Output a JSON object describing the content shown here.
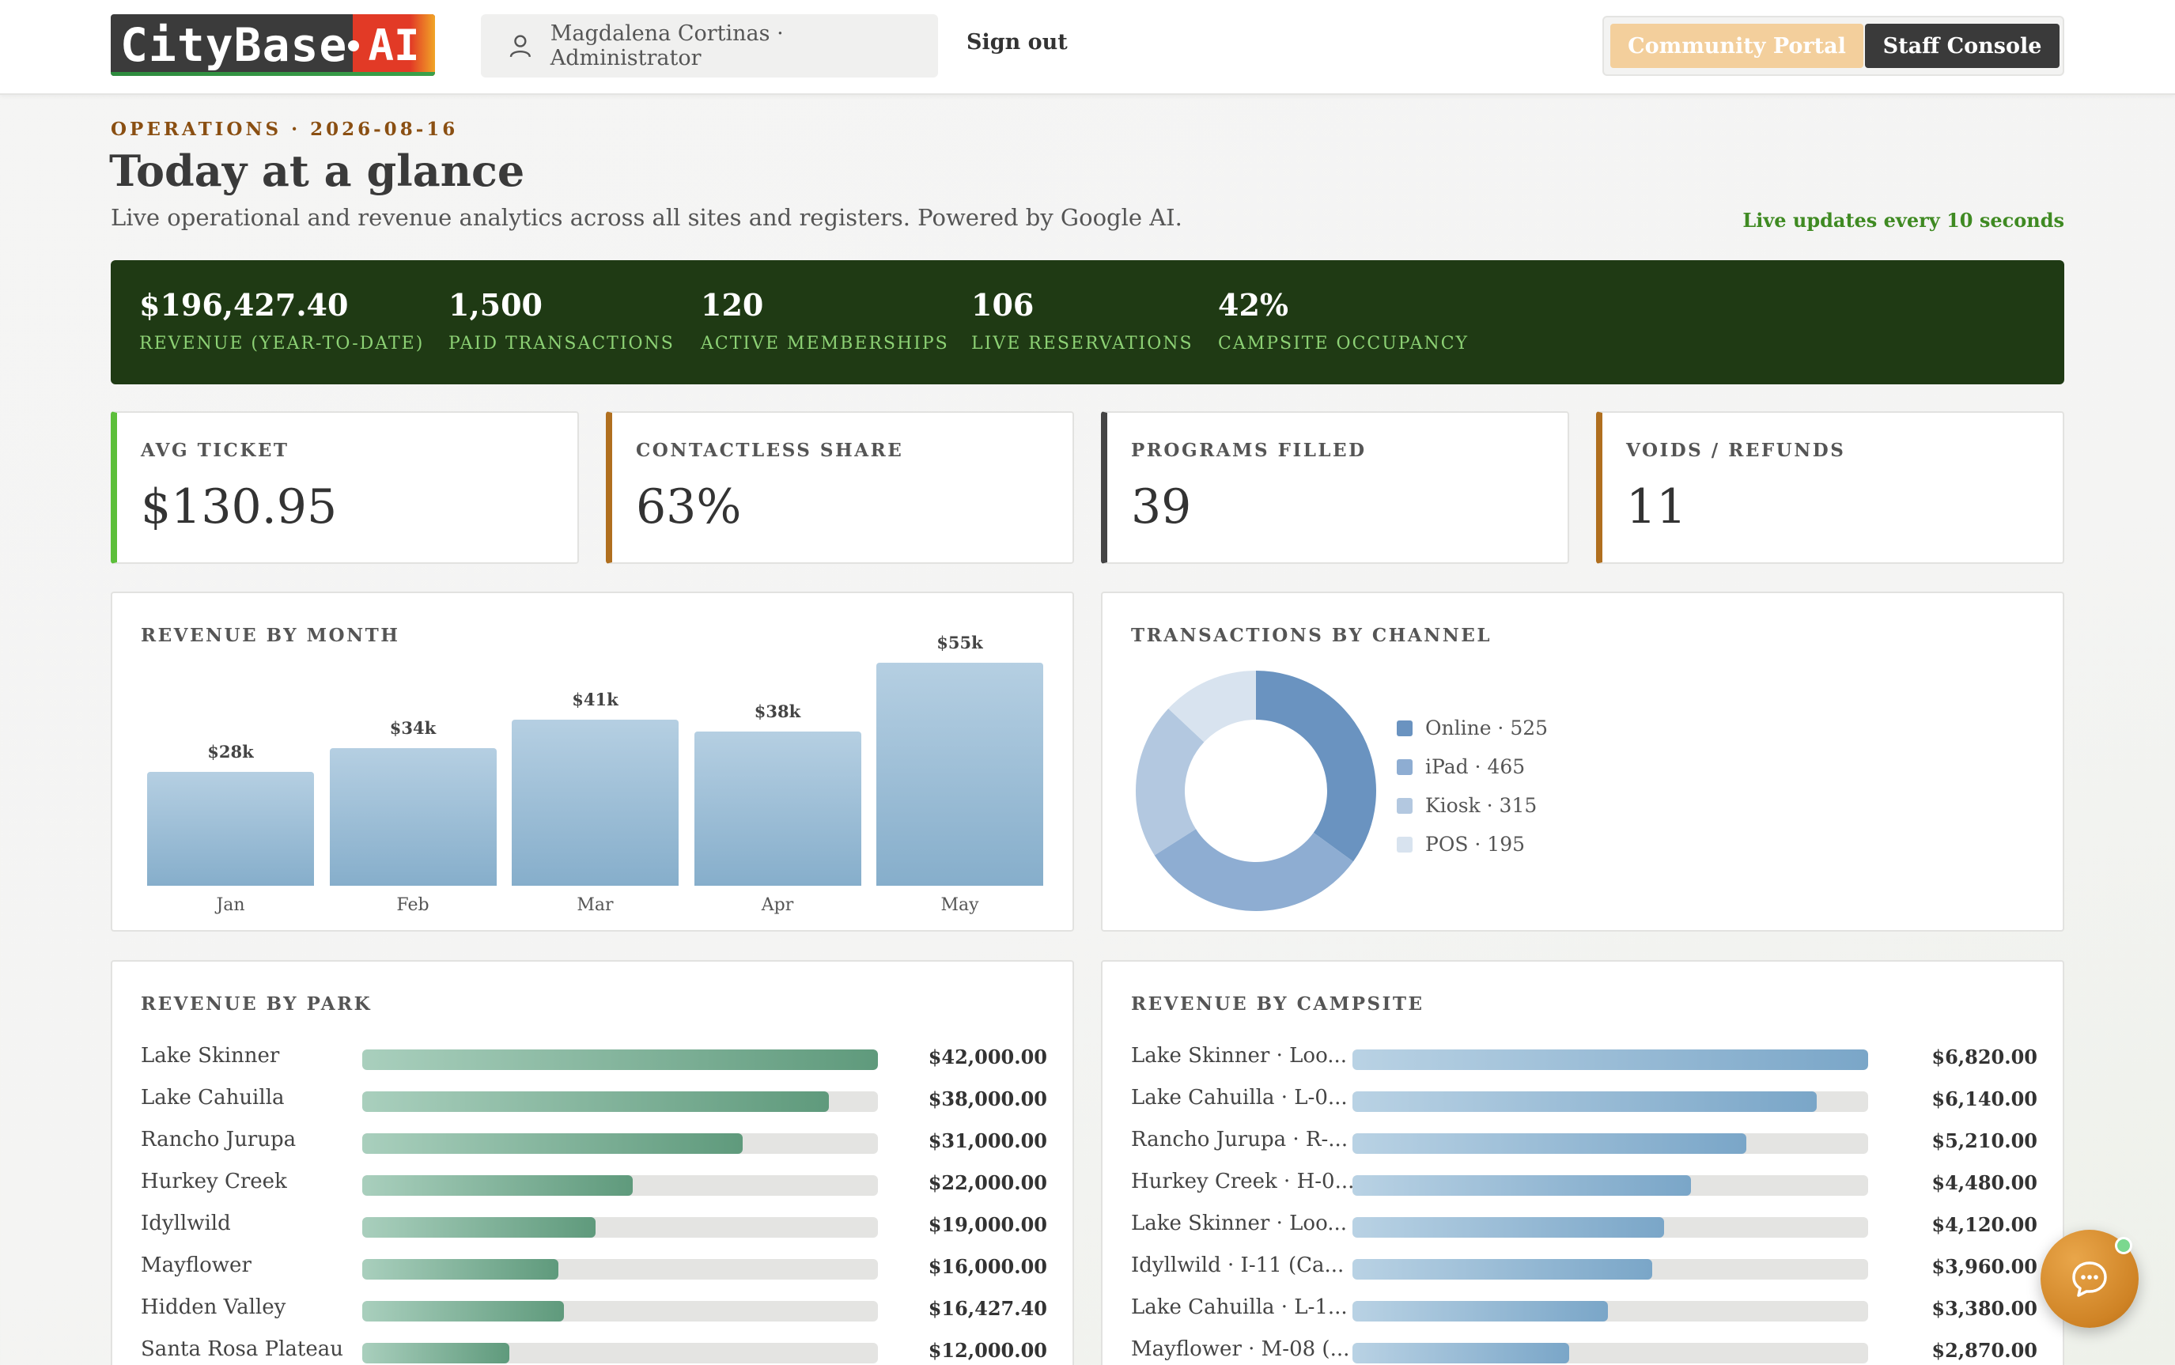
{
  "header": {
    "logo_text": "CityBase",
    "logo_ai": "AI",
    "user": "Magdalena Cortinas · Administrator",
    "sign_out": "Sign out",
    "community_portal": "Community Portal",
    "staff_console": "Staff Console"
  },
  "page": {
    "eyebrow": "OPERATIONS · 2026-08-16",
    "title": "Today at a glance",
    "subtitle": "Live operational and revenue analytics across all sites and registers. Powered by Google AI.",
    "live_note": "Live updates every 10 seconds"
  },
  "banner": [
    {
      "value": "$196,427.40",
      "label": "REVENUE (YEAR-TO-DATE)"
    },
    {
      "value": "1,500",
      "label": "PAID TRANSACTIONS"
    },
    {
      "value": "120",
      "label": "ACTIVE MEMBERSHIPS"
    },
    {
      "value": "106",
      "label": "LIVE RESERVATIONS"
    },
    {
      "value": "42%",
      "label": "CAMPSITE OCCUPANCY"
    }
  ],
  "kpis": [
    {
      "label": "AVG TICKET",
      "value": "$130.95",
      "accent": "#5cbf3a"
    },
    {
      "label": "CONTACTLESS SHARE",
      "value": "63%",
      "accent": "#b06f1f"
    },
    {
      "label": "PROGRAMS FILLED",
      "value": "39",
      "accent": "#444444"
    },
    {
      "label": "VOIDS / REFUNDS",
      "value": "11",
      "accent": "#b06f1f"
    }
  ],
  "revenue_by_month": {
    "title": "REVENUE BY MONTH",
    "chart_data": {
      "type": "bar",
      "categories": [
        "Jan",
        "Feb",
        "Mar",
        "Apr",
        "May"
      ],
      "values": [
        28,
        34,
        41,
        38,
        55
      ],
      "data_labels": [
        "$28k",
        "$34k",
        "$41k",
        "$38k",
        "$55k"
      ],
      "ylim": [
        0,
        55
      ]
    }
  },
  "transactions_by_channel": {
    "title": "TRANSACTIONS BY CHANNEL",
    "chart_data": {
      "type": "pie",
      "categories": [
        "Online",
        "iPad",
        "Kiosk",
        "POS"
      ],
      "values": [
        525,
        465,
        315,
        195
      ],
      "legend": [
        "Online · 525",
        "iPad · 465",
        "Kiosk · 315",
        "POS · 195"
      ],
      "colors": [
        "#6a93c0",
        "#8eadd2",
        "#b3c8e0",
        "#d8e3ef"
      ]
    }
  },
  "revenue_by_park": {
    "title": "REVENUE BY PARK",
    "max": 42000,
    "rows": [
      {
        "label": "Lake Skinner",
        "value": 42000,
        "display": "$42,000.00"
      },
      {
        "label": "Lake Cahuilla",
        "value": 38000,
        "display": "$38,000.00"
      },
      {
        "label": "Rancho Jurupa",
        "value": 31000,
        "display": "$31,000.00"
      },
      {
        "label": "Hurkey Creek",
        "value": 22000,
        "display": "$22,000.00"
      },
      {
        "label": "Idyllwild",
        "value": 19000,
        "display": "$19,000.00"
      },
      {
        "label": "Mayflower",
        "value": 16000,
        "display": "$16,000.00"
      },
      {
        "label": "Hidden Valley",
        "value": 16427.4,
        "display": "$16,427.40"
      },
      {
        "label": "Santa Rosa Plateau",
        "value": 12000,
        "display": "$12,000.00"
      }
    ]
  },
  "revenue_by_campsite": {
    "title": "REVENUE BY CAMPSITE",
    "max": 6820,
    "rows": [
      {
        "label": "Lake Skinner · Loo...",
        "value": 6820,
        "display": "$6,820.00"
      },
      {
        "label": "Lake Cahuilla · L-0...",
        "value": 6140,
        "display": "$6,140.00"
      },
      {
        "label": "Rancho Jurupa · R-...",
        "value": 5210,
        "display": "$5,210.00"
      },
      {
        "label": "Hurkey Creek · H-0...",
        "value": 4480,
        "display": "$4,480.00"
      },
      {
        "label": "Lake Skinner · Loo...",
        "value": 4120,
        "display": "$4,120.00"
      },
      {
        "label": "Idyllwild · I-11 (Ca...",
        "value": 3960,
        "display": "$3,960.00"
      },
      {
        "label": "Lake Cahuilla · L-1...",
        "value": 3380,
        "display": "$3,380.00"
      },
      {
        "label": "Mayflower · M-08 (...",
        "value": 2870,
        "display": "$2,870.00"
      }
    ]
  }
}
